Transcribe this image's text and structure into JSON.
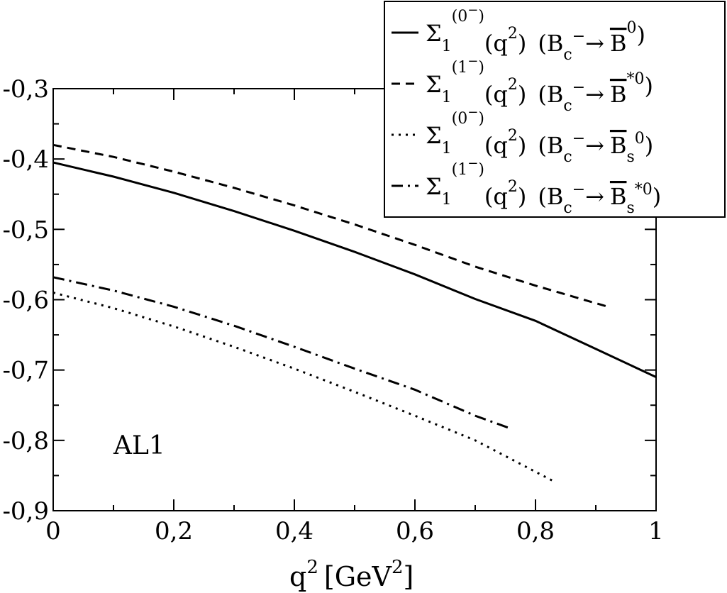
{
  "chart_data": {
    "type": "line",
    "title": "",
    "xlabel": "q",
    "xlabel_sup": "2",
    "xlabel_unit": "[GeV",
    "xlabel_unit_sup": "2",
    "xlabel_unit_close": "]",
    "ylabel": "",
    "xlim": [
      0,
      1
    ],
    "ylim": [
      -0.9,
      -0.3
    ],
    "x_ticks": [
      {
        "value": 0,
        "label": "0"
      },
      {
        "value": 0.2,
        "label": "0,2"
      },
      {
        "value": 0.4,
        "label": "0,4"
      },
      {
        "value": 0.6,
        "label": "0,6"
      },
      {
        "value": 0.8,
        "label": "0,8"
      },
      {
        "value": 1,
        "label": "1"
      }
    ],
    "y_ticks": [
      {
        "value": -0.3,
        "label": "-0,3"
      },
      {
        "value": -0.4,
        "label": "-0,4"
      },
      {
        "value": -0.5,
        "label": "-0,5"
      },
      {
        "value": -0.6,
        "label": "-0,6"
      },
      {
        "value": -0.7,
        "label": "-0,7"
      },
      {
        "value": -0.8,
        "label": "-0,8"
      },
      {
        "value": -0.9,
        "label": "-0,9"
      }
    ],
    "grid": false,
    "legend_position": "top-right",
    "annotation": "AL1",
    "series": [
      {
        "style": "solid",
        "legend": {
          "sym": "Σ",
          "sub1": "1",
          "sup1": "(0",
          "sup1m": "−",
          "sup1c": ")",
          "q": "(q",
          "qsup": "2",
          "qc": ")",
          "proc_open": "(B",
          "proc_sub": "c",
          "proc_sup": "−",
          "arrow": "→",
          "fin": "B",
          "fin_sub": "",
          "fin_sup": "0",
          "close": ")"
        },
        "x": [
          0,
          0.1,
          0.2,
          0.3,
          0.4,
          0.5,
          0.6,
          0.7,
          0.8,
          0.9,
          1.0
        ],
        "y": [
          -0.405,
          -0.425,
          -0.448,
          -0.474,
          -0.502,
          -0.532,
          -0.564,
          -0.599,
          -0.63,
          -0.67,
          -0.71
        ]
      },
      {
        "style": "dashed",
        "legend": {
          "sym": "Σ",
          "sub1": "1",
          "sup1": "(1",
          "sup1m": "−",
          "sup1c": ")",
          "q": "(q",
          "qsup": "2",
          "qc": ")",
          "proc_open": "(B",
          "proc_sub": "c",
          "proc_sup": "−",
          "arrow": "→",
          "fin": "B",
          "fin_sub": "",
          "fin_sup": "*0",
          "close": ")"
        },
        "x": [
          0,
          0.1,
          0.2,
          0.3,
          0.4,
          0.5,
          0.6,
          0.7,
          0.8,
          0.92
        ],
        "y": [
          -0.38,
          -0.397,
          -0.418,
          -0.441,
          -0.466,
          -0.493,
          -0.522,
          -0.553,
          -0.58,
          -0.61
        ]
      },
      {
        "style": "dotted",
        "legend": {
          "sym": "Σ",
          "sub1": "1",
          "sup1": "(0",
          "sup1m": "−",
          "sup1c": ")",
          "q": "(q",
          "qsup": "2",
          "qc": ")",
          "proc_open": "(B",
          "proc_sub": "c",
          "proc_sup": "−",
          "arrow": "→",
          "fin": "B",
          "fin_sub": "s",
          "fin_sup": "0",
          "close": ")"
        },
        "x": [
          0,
          0.1,
          0.2,
          0.3,
          0.4,
          0.5,
          0.6,
          0.7,
          0.83
        ],
        "y": [
          -0.59,
          -0.612,
          -0.638,
          -0.667,
          -0.698,
          -0.731,
          -0.765,
          -0.8,
          -0.858
        ]
      },
      {
        "style": "dashdot",
        "legend": {
          "sym": "Σ",
          "sub1": "1",
          "sup1": "(1",
          "sup1m": "−",
          "sup1c": ")",
          "q": "(q",
          "qsup": "2",
          "qc": ")",
          "proc_open": "(B",
          "proc_sub": "c",
          "proc_sup": "−",
          "arrow": "→",
          "fin": "B",
          "fin_sub": "s",
          "fin_sup": "*0",
          "close": ")"
        },
        "x": [
          0,
          0.1,
          0.2,
          0.3,
          0.4,
          0.5,
          0.6,
          0.7,
          0.755
        ],
        "y": [
          -0.568,
          -0.587,
          -0.61,
          -0.637,
          -0.667,
          -0.698,
          -0.728,
          -0.765,
          -0.782
        ]
      }
    ]
  }
}
